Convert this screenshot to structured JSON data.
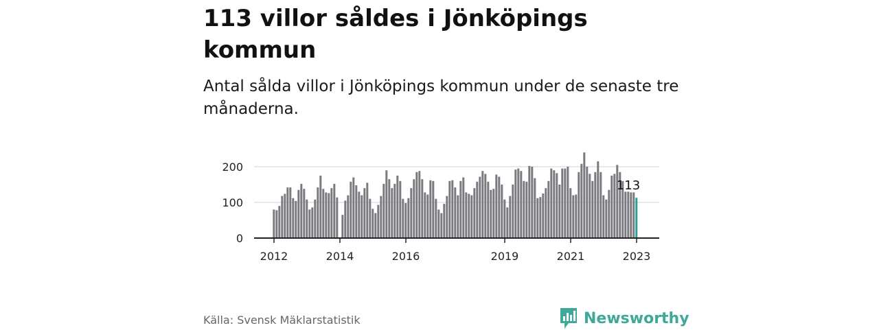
{
  "header": {
    "title": "113 villor såldes i Jönköpings kommun",
    "subtitle": "Antal sålda villor i Jönköpings kommun under de senaste tre månaderna."
  },
  "footer": {
    "source": "Källa: Svensk Mäklarstatistik",
    "brand": "Newsworthy",
    "brand_icon": "newsworthy-logo-icon"
  },
  "colors": {
    "bar": "#7a7a80",
    "highlight": "#2aa198",
    "grid": "#d9d9d9",
    "axis": "#222222",
    "brand": "#3ea89a"
  },
  "chart_data": {
    "type": "bar",
    "title": "113 villor såldes i Jönköpings kommun",
    "xlabel": "",
    "ylabel": "",
    "ylim": [
      0,
      200
    ],
    "yticks": [
      0,
      100,
      200
    ],
    "grid": true,
    "start": "2012-01",
    "x_ticks": [
      "2012",
      "2014",
      "2016",
      "2019",
      "2021",
      "2023"
    ],
    "annotation": {
      "label": "113",
      "target": "last"
    },
    "values": [
      80,
      78,
      90,
      118,
      124,
      142,
      142,
      112,
      104,
      135,
      152,
      138,
      108,
      80,
      86,
      108,
      142,
      175,
      138,
      128,
      126,
      140,
      152,
      114,
      null,
      65,
      105,
      120,
      158,
      170,
      148,
      130,
      120,
      140,
      155,
      110,
      82,
      70,
      93,
      118,
      152,
      190,
      165,
      140,
      152,
      175,
      160,
      110,
      98,
      112,
      140,
      165,
      185,
      188,
      165,
      128,
      122,
      162,
      160,
      110,
      80,
      70,
      96,
      118,
      160,
      162,
      142,
      120,
      160,
      170,
      128,
      124,
      120,
      140,
      158,
      172,
      188,
      180,
      158,
      135,
      138,
      178,
      172,
      150,
      108,
      86,
      118,
      150,
      192,
      195,
      188,
      160,
      158,
      202,
      200,
      168,
      112,
      115,
      125,
      140,
      160,
      195,
      190,
      182,
      150,
      195,
      195,
      200,
      140,
      120,
      122,
      185,
      208,
      240,
      200,
      180,
      160,
      185,
      215,
      185,
      120,
      108,
      135,
      175,
      180,
      205,
      185,
      160,
      130,
      130,
      128,
      128,
      113
    ]
  }
}
